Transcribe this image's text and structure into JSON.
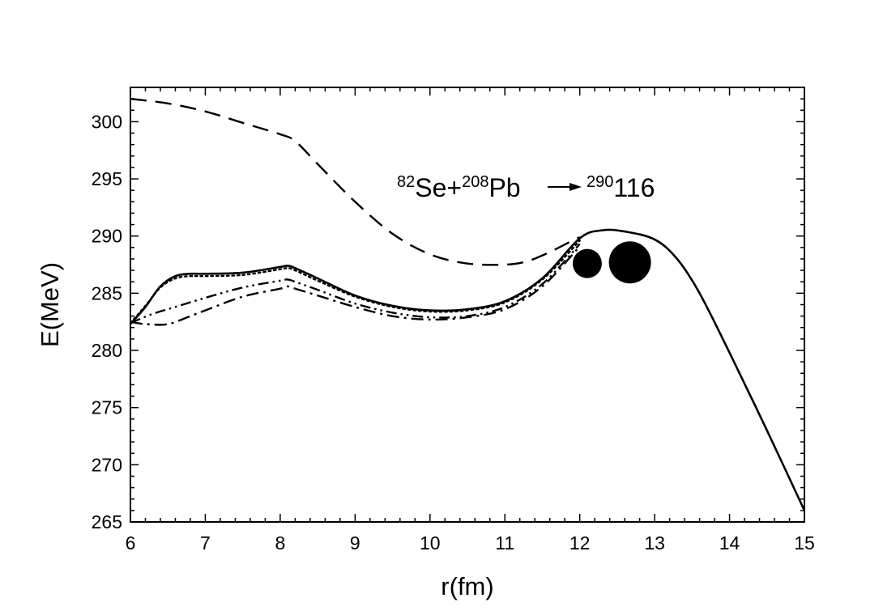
{
  "chart_data": {
    "type": "line",
    "xlabel": "r(fm)",
    "ylabel": "E(MeV)",
    "xlim": [
      6,
      15
    ],
    "ylim": [
      265,
      303
    ],
    "x_ticks": [
      6,
      7,
      8,
      9,
      10,
      11,
      12,
      13,
      14,
      15
    ],
    "y_ticks": [
      265,
      270,
      275,
      280,
      285,
      290,
      295,
      300
    ],
    "grid": false,
    "legend": "none",
    "annotation": {
      "projectile_mass": "82",
      "projectile": "Se+",
      "target_mass": "208",
      "target": "Pb",
      "product_mass": "290",
      "product": "116"
    },
    "series": [
      {
        "style": "solid",
        "x": [
          6.0,
          6.2,
          6.4,
          6.6,
          6.8,
          7.0,
          7.5,
          8.0,
          8.1,
          8.2,
          8.5,
          9.0,
          9.5,
          10.0,
          10.5,
          11.0,
          11.5,
          12.0,
          12.3,
          12.6,
          13.0,
          13.3,
          13.6,
          14.0,
          14.5,
          15.0
        ],
        "y": [
          282.3,
          283.8,
          285.6,
          286.5,
          286.7,
          286.7,
          286.8,
          287.3,
          287.4,
          287.2,
          286.3,
          284.8,
          283.9,
          283.5,
          283.6,
          284.3,
          286.3,
          289.8,
          290.5,
          290.4,
          289.7,
          288.0,
          285.0,
          279.8,
          273.0,
          266.0
        ]
      },
      {
        "style": "dotted",
        "x": [
          6.0,
          6.2,
          6.4,
          6.6,
          6.8,
          7.0,
          7.5,
          8.0,
          8.1,
          8.2,
          8.5,
          9.0,
          9.5,
          10.0,
          10.5,
          11.0,
          11.5,
          12.0
        ],
        "y": [
          282.4,
          283.9,
          285.5,
          286.3,
          286.5,
          286.5,
          286.6,
          287.1,
          287.2,
          287.0,
          286.1,
          284.7,
          283.8,
          283.4,
          283.5,
          284.2,
          286.2,
          289.6
        ]
      },
      {
        "style": "dash-dot-dot",
        "x": [
          6.0,
          6.3,
          6.6,
          7.0,
          7.5,
          8.0,
          8.1,
          8.2,
          8.5,
          9.0,
          9.5,
          10.0,
          10.5,
          11.0,
          11.5,
          12.0
        ],
        "y": [
          282.4,
          283.2,
          283.8,
          284.6,
          285.5,
          286.1,
          286.2,
          286.0,
          285.3,
          284.1,
          283.3,
          282.9,
          283.0,
          283.8,
          285.8,
          289.3
        ]
      },
      {
        "style": "dash-dot",
        "x": [
          6.0,
          6.2,
          6.5,
          6.8,
          7.0,
          7.5,
          8.0,
          8.1,
          8.2,
          8.5,
          9.0,
          9.5,
          10.0,
          10.5,
          11.0,
          11.5,
          12.0
        ],
        "y": [
          282.5,
          282.3,
          282.3,
          283.0,
          283.5,
          284.7,
          285.4,
          285.6,
          285.4,
          284.8,
          283.8,
          283.0,
          282.7,
          282.9,
          283.6,
          285.6,
          289.1
        ]
      },
      {
        "style": "dashed",
        "x": [
          6.0,
          6.5,
          7.0,
          7.5,
          8.0,
          8.2,
          8.5,
          9.0,
          9.5,
          10.0,
          10.5,
          11.0,
          11.3,
          11.6,
          11.9,
          12.0
        ],
        "y": [
          302.0,
          301.6,
          300.9,
          299.9,
          298.9,
          298.3,
          296.3,
          293.0,
          290.2,
          288.4,
          287.6,
          287.5,
          287.8,
          288.6,
          289.6,
          289.9
        ]
      }
    ],
    "markers": [
      {
        "shape": "filled-circle",
        "x": 12.1,
        "y": 287.6,
        "size": "small"
      },
      {
        "shape": "filled-circle",
        "x": 12.67,
        "y": 287.7,
        "size": "large"
      }
    ]
  }
}
